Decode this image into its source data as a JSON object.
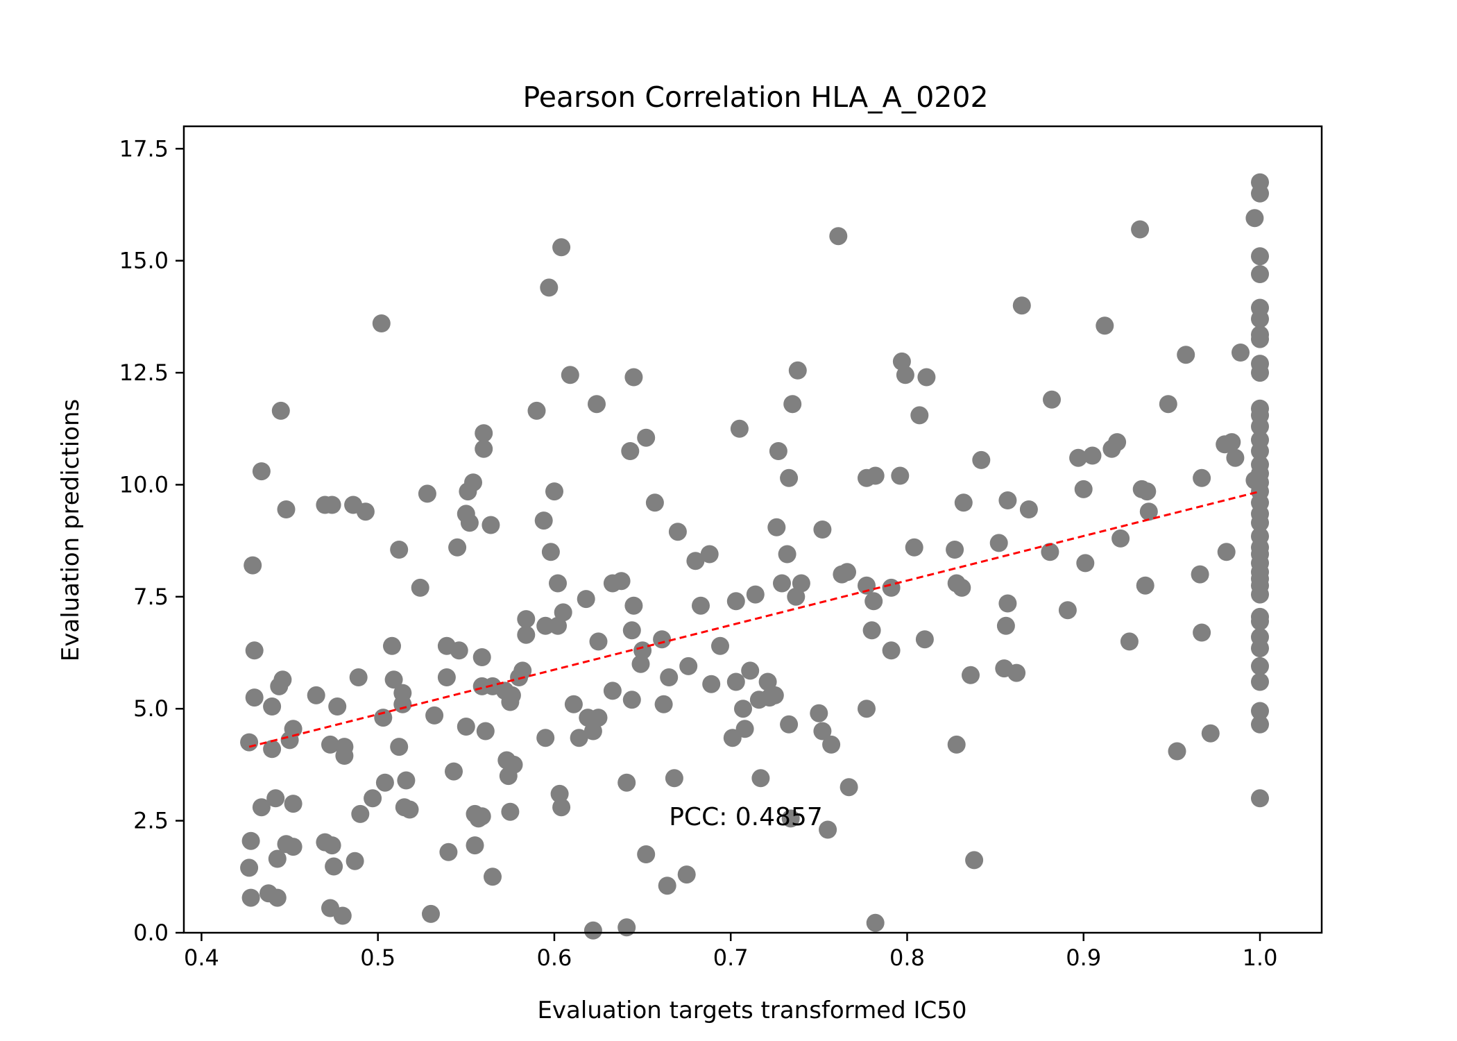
{
  "chart_data": {
    "type": "scatter",
    "title": "Pearson Correlation HLA_A_0202",
    "xlabel": "Evaluation targets transformed IC50",
    "ylabel": "Evaluation predictions",
    "xlim": [
      0.39,
      1.035
    ],
    "ylim": [
      0.0,
      18.0
    ],
    "x_ticks": [
      0.4,
      0.5,
      0.6,
      0.7,
      0.8,
      0.9,
      1.0
    ],
    "x_tick_labels": [
      "0.4",
      "0.5",
      "0.6",
      "0.7",
      "0.8",
      "0.9",
      "1.0"
    ],
    "y_ticks": [
      0.0,
      2.5,
      5.0,
      7.5,
      10.0,
      12.5,
      15.0,
      17.5
    ],
    "y_tick_labels": [
      "0.0",
      "2.5",
      "5.0",
      "7.5",
      "10.0",
      "12.5",
      "15.0",
      "17.5"
    ],
    "grid": false,
    "annotation": {
      "text": "PCC: 0.4857",
      "x": 0.665,
      "y": 2.6
    },
    "marker_color": "#808080",
    "fit_line_color": "#ff0000",
    "fit_line": {
      "x": [
        0.427,
        1.0
      ],
      "y": [
        4.15,
        9.85
      ]
    },
    "points": [
      [
        0.427,
        4.25
      ],
      [
        0.428,
        2.05
      ],
      [
        0.427,
        1.45
      ],
      [
        0.428,
        0.78
      ],
      [
        0.429,
        8.2
      ],
      [
        0.43,
        6.3
      ],
      [
        0.43,
        5.25
      ],
      [
        0.434,
        10.3
      ],
      [
        0.434,
        2.8
      ],
      [
        0.438,
        0.88
      ],
      [
        0.44,
        5.05
      ],
      [
        0.44,
        4.1
      ],
      [
        0.442,
        3.0
      ],
      [
        0.443,
        1.65
      ],
      [
        0.443,
        0.78
      ],
      [
        0.444,
        5.5
      ],
      [
        0.445,
        11.65
      ],
      [
        0.446,
        5.65
      ],
      [
        0.448,
        9.45
      ],
      [
        0.448,
        1.98
      ],
      [
        0.45,
        4.3
      ],
      [
        0.452,
        4.55
      ],
      [
        0.452,
        2.88
      ],
      [
        0.452,
        1.92
      ],
      [
        0.465,
        5.3
      ],
      [
        0.47,
        9.55
      ],
      [
        0.47,
        2.02
      ],
      [
        0.473,
        4.2
      ],
      [
        0.473,
        0.55
      ],
      [
        0.474,
        9.55
      ],
      [
        0.474,
        1.95
      ],
      [
        0.475,
        1.48
      ],
      [
        0.477,
        5.05
      ],
      [
        0.48,
        0.38
      ],
      [
        0.481,
        4.15
      ],
      [
        0.481,
        3.95
      ],
      [
        0.486,
        9.55
      ],
      [
        0.487,
        1.6
      ],
      [
        0.489,
        5.7
      ],
      [
        0.49,
        2.65
      ],
      [
        0.493,
        9.4
      ],
      [
        0.497,
        3.0
      ],
      [
        0.502,
        13.6
      ],
      [
        0.503,
        4.8
      ],
      [
        0.504,
        3.35
      ],
      [
        0.508,
        6.4
      ],
      [
        0.509,
        5.65
      ],
      [
        0.512,
        8.55
      ],
      [
        0.512,
        4.15
      ],
      [
        0.514,
        5.35
      ],
      [
        0.514,
        5.1
      ],
      [
        0.515,
        2.8
      ],
      [
        0.516,
        3.4
      ],
      [
        0.518,
        2.75
      ],
      [
        0.524,
        7.7
      ],
      [
        0.528,
        9.8
      ],
      [
        0.53,
        0.42
      ],
      [
        0.532,
        4.85
      ],
      [
        0.539,
        6.4
      ],
      [
        0.539,
        5.7
      ],
      [
        0.54,
        1.8
      ],
      [
        0.543,
        3.6
      ],
      [
        0.545,
        8.6
      ],
      [
        0.546,
        6.3
      ],
      [
        0.55,
        9.35
      ],
      [
        0.55,
        4.6
      ],
      [
        0.551,
        9.85
      ],
      [
        0.552,
        9.15
      ],
      [
        0.554,
        10.05
      ],
      [
        0.555,
        2.65
      ],
      [
        0.555,
        1.95
      ],
      [
        0.557,
        2.55
      ],
      [
        0.559,
        2.6
      ],
      [
        0.559,
        6.15
      ],
      [
        0.559,
        5.5
      ],
      [
        0.56,
        11.15
      ],
      [
        0.56,
        10.8
      ],
      [
        0.561,
        4.5
      ],
      [
        0.564,
        9.1
      ],
      [
        0.565,
        5.5
      ],
      [
        0.565,
        1.25
      ],
      [
        0.572,
        5.4
      ],
      [
        0.573,
        3.85
      ],
      [
        0.574,
        3.5
      ],
      [
        0.575,
        5.15
      ],
      [
        0.576,
        5.3
      ],
      [
        0.577,
        3.75
      ],
      [
        0.575,
        2.7
      ],
      [
        0.58,
        5.7
      ],
      [
        0.582,
        5.85
      ],
      [
        0.584,
        7.0
      ],
      [
        0.584,
        6.65
      ],
      [
        0.59,
        11.65
      ],
      [
        0.594,
        9.2
      ],
      [
        0.595,
        6.85
      ],
      [
        0.595,
        4.35
      ],
      [
        0.597,
        14.4
      ],
      [
        0.598,
        8.5
      ],
      [
        0.6,
        9.85
      ],
      [
        0.602,
        7.8
      ],
      [
        0.602,
        6.85
      ],
      [
        0.603,
        3.1
      ],
      [
        0.604,
        15.3
      ],
      [
        0.604,
        2.8
      ],
      [
        0.605,
        7.15
      ],
      [
        0.609,
        12.45
      ],
      [
        0.611,
        5.1
      ],
      [
        0.614,
        4.35
      ],
      [
        0.618,
        7.45
      ],
      [
        0.619,
        4.8
      ],
      [
        0.622,
        4.5
      ],
      [
        0.622,
        0.05
      ],
      [
        0.624,
        11.8
      ],
      [
        0.625,
        6.5
      ],
      [
        0.625,
        4.8
      ],
      [
        0.633,
        7.8
      ],
      [
        0.633,
        5.4
      ],
      [
        0.638,
        7.85
      ],
      [
        0.641,
        3.35
      ],
      [
        0.641,
        0.12
      ],
      [
        0.643,
        10.75
      ],
      [
        0.644,
        6.75
      ],
      [
        0.644,
        5.2
      ],
      [
        0.645,
        12.4
      ],
      [
        0.645,
        7.3
      ],
      [
        0.649,
        6.0
      ],
      [
        0.65,
        6.3
      ],
      [
        0.652,
        11.05
      ],
      [
        0.652,
        1.75
      ],
      [
        0.657,
        9.6
      ],
      [
        0.661,
        6.55
      ],
      [
        0.662,
        5.1
      ],
      [
        0.664,
        1.05
      ],
      [
        0.665,
        5.7
      ],
      [
        0.668,
        3.45
      ],
      [
        0.67,
        8.95
      ],
      [
        0.675,
        1.3
      ],
      [
        0.676,
        5.95
      ],
      [
        0.68,
        8.3
      ],
      [
        0.683,
        7.3
      ],
      [
        0.688,
        8.45
      ],
      [
        0.689,
        5.55
      ],
      [
        0.694,
        6.4
      ],
      [
        0.701,
        4.35
      ],
      [
        0.703,
        7.4
      ],
      [
        0.703,
        5.6
      ],
      [
        0.705,
        11.25
      ],
      [
        0.707,
        5.0
      ],
      [
        0.708,
        4.55
      ],
      [
        0.711,
        5.85
      ],
      [
        0.714,
        7.55
      ],
      [
        0.716,
        5.2
      ],
      [
        0.717,
        3.45
      ],
      [
        0.721,
        5.6
      ],
      [
        0.722,
        5.25
      ],
      [
        0.725,
        5.3
      ],
      [
        0.726,
        9.05
      ],
      [
        0.727,
        10.75
      ],
      [
        0.729,
        7.8
      ],
      [
        0.732,
        8.45
      ],
      [
        0.733,
        10.15
      ],
      [
        0.733,
        4.65
      ],
      [
        0.734,
        2.55
      ],
      [
        0.735,
        11.8
      ],
      [
        0.737,
        7.5
      ],
      [
        0.738,
        12.55
      ],
      [
        0.74,
        7.8
      ],
      [
        0.75,
        4.9
      ],
      [
        0.752,
        9.0
      ],
      [
        0.752,
        4.5
      ],
      [
        0.755,
        2.3
      ],
      [
        0.757,
        4.2
      ],
      [
        0.761,
        15.55
      ],
      [
        0.763,
        8.0
      ],
      [
        0.766,
        8.05
      ],
      [
        0.767,
        3.25
      ],
      [
        0.777,
        10.15
      ],
      [
        0.777,
        7.75
      ],
      [
        0.777,
        5.0
      ],
      [
        0.78,
        6.75
      ],
      [
        0.781,
        7.4
      ],
      [
        0.782,
        10.2
      ],
      [
        0.782,
        0.22
      ],
      [
        0.791,
        6.3
      ],
      [
        0.791,
        7.7
      ],
      [
        0.796,
        10.2
      ],
      [
        0.797,
        12.75
      ],
      [
        0.799,
        12.45
      ],
      [
        0.804,
        8.6
      ],
      [
        0.807,
        11.55
      ],
      [
        0.81,
        6.55
      ],
      [
        0.811,
        12.4
      ],
      [
        0.827,
        8.55
      ],
      [
        0.828,
        7.8
      ],
      [
        0.828,
        4.2
      ],
      [
        0.831,
        7.7
      ],
      [
        0.832,
        9.6
      ],
      [
        0.836,
        5.75
      ],
      [
        0.838,
        1.62
      ],
      [
        0.842,
        10.55
      ],
      [
        0.852,
        8.7
      ],
      [
        0.855,
        5.9
      ],
      [
        0.856,
        6.85
      ],
      [
        0.857,
        9.65
      ],
      [
        0.857,
        7.35
      ],
      [
        0.862,
        5.8
      ],
      [
        0.865,
        14.0
      ],
      [
        0.869,
        9.45
      ],
      [
        0.881,
        8.5
      ],
      [
        0.882,
        11.9
      ],
      [
        0.891,
        7.2
      ],
      [
        0.897,
        10.6
      ],
      [
        0.9,
        9.9
      ],
      [
        0.901,
        8.25
      ],
      [
        0.905,
        10.65
      ],
      [
        0.912,
        13.55
      ],
      [
        0.916,
        10.8
      ],
      [
        0.919,
        10.95
      ],
      [
        0.921,
        8.8
      ],
      [
        0.926,
        6.5
      ],
      [
        0.932,
        15.7
      ],
      [
        0.933,
        9.9
      ],
      [
        0.935,
        7.75
      ],
      [
        0.936,
        9.85
      ],
      [
        0.937,
        9.4
      ],
      [
        0.948,
        11.8
      ],
      [
        0.953,
        4.05
      ],
      [
        0.958,
        12.9
      ],
      [
        0.966,
        8.0
      ],
      [
        0.967,
        10.15
      ],
      [
        0.967,
        6.7
      ],
      [
        0.972,
        4.45
      ],
      [
        0.98,
        10.9
      ],
      [
        0.981,
        8.5
      ],
      [
        0.984,
        10.95
      ],
      [
        0.986,
        10.6
      ],
      [
        0.989,
        12.95
      ],
      [
        0.997,
        10.1
      ],
      [
        0.997,
        15.95
      ],
      [
        1.0,
        16.75
      ],
      [
        1.0,
        16.5
      ],
      [
        1.0,
        15.1
      ],
      [
        1.0,
        14.7
      ],
      [
        1.0,
        13.95
      ],
      [
        1.0,
        13.7
      ],
      [
        1.0,
        13.35
      ],
      [
        1.0,
        13.25
      ],
      [
        1.0,
        12.7
      ],
      [
        1.0,
        12.5
      ],
      [
        1.0,
        11.7
      ],
      [
        1.0,
        11.55
      ],
      [
        1.0,
        11.3
      ],
      [
        1.0,
        11.0
      ],
      [
        1.0,
        10.75
      ],
      [
        1.0,
        10.45
      ],
      [
        1.0,
        10.25
      ],
      [
        1.0,
        10.05
      ],
      [
        1.0,
        9.85
      ],
      [
        1.0,
        9.6
      ],
      [
        1.0,
        9.35
      ],
      [
        1.0,
        9.15
      ],
      [
        1.0,
        8.85
      ],
      [
        1.0,
        8.6
      ],
      [
        1.0,
        8.45
      ],
      [
        1.0,
        8.25
      ],
      [
        1.0,
        8.05
      ],
      [
        1.0,
        7.9
      ],
      [
        1.0,
        7.75
      ],
      [
        1.0,
        7.55
      ],
      [
        1.0,
        7.05
      ],
      [
        1.0,
        6.95
      ],
      [
        1.0,
        6.6
      ],
      [
        1.0,
        6.35
      ],
      [
        1.0,
        5.95
      ],
      [
        1.0,
        5.6
      ],
      [
        1.0,
        4.95
      ],
      [
        1.0,
        4.65
      ],
      [
        1.0,
        3.0
      ]
    ]
  }
}
